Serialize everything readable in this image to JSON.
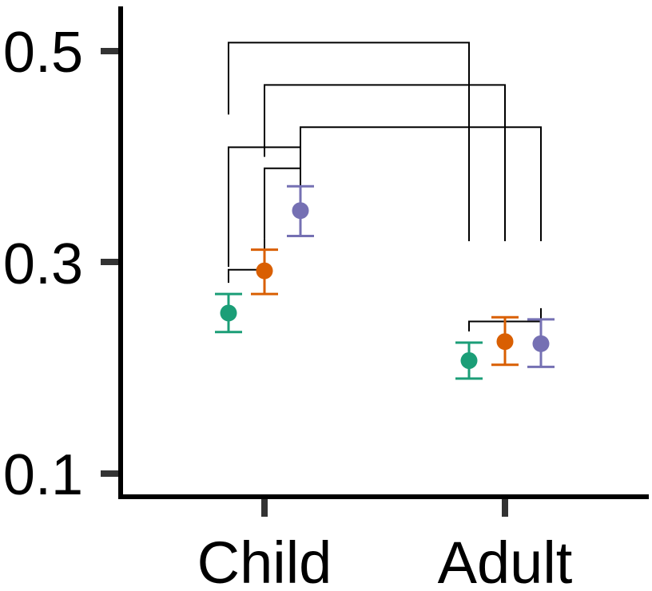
{
  "chart_data": {
    "type": "scatter",
    "title": "",
    "xlabel": "",
    "ylabel": "",
    "categories": [
      "Child",
      "Adult"
    ],
    "y_ticks": [
      "0.1",
      "0.3",
      "0.5"
    ],
    "ylim": [
      0.08,
      0.54
    ],
    "series_colors": [
      "#1b9e77",
      "#d95f02",
      "#7570b3"
    ],
    "points": [
      {
        "category": "Child",
        "series": 0,
        "y": 0.252,
        "lower": 0.234,
        "upper": 0.27
      },
      {
        "category": "Child",
        "series": 1,
        "y": 0.292,
        "lower": 0.27,
        "upper": 0.312
      },
      {
        "category": "Child",
        "series": 2,
        "y": 0.349,
        "lower": 0.325,
        "upper": 0.372
      },
      {
        "category": "Adult",
        "series": 0,
        "y": 0.207,
        "lower": 0.19,
        "upper": 0.224
      },
      {
        "category": "Adult",
        "series": 1,
        "y": 0.225,
        "lower": 0.203,
        "upper": 0.248
      },
      {
        "category": "Adult",
        "series": 2,
        "y": 0.223,
        "lower": 0.201,
        "upper": 0.246
      }
    ],
    "brackets": [
      {
        "from": [
          "Child",
          0
        ],
        "to": [
          "Child",
          1
        ],
        "level": 0.293
      },
      {
        "from": [
          "Child",
          1
        ],
        "to": [
          "Child",
          2
        ],
        "level": 0.389
      },
      {
        "from": [
          "Child",
          0
        ],
        "to": [
          "Child",
          2
        ],
        "level": 0.409
      },
      {
        "from": [
          "Child",
          2
        ],
        "to": [
          "Adult",
          2
        ],
        "level": 0.428
      },
      {
        "from": [
          "Child",
          1
        ],
        "to": [
          "Adult",
          1
        ],
        "level": 0.468
      },
      {
        "from": [
          "Child",
          0
        ],
        "to": [
          "Adult",
          0
        ],
        "level": 0.508
      },
      {
        "from": [
          "Adult",
          0
        ],
        "to": [
          "Adult",
          2
        ],
        "level": 0.244
      }
    ]
  }
}
